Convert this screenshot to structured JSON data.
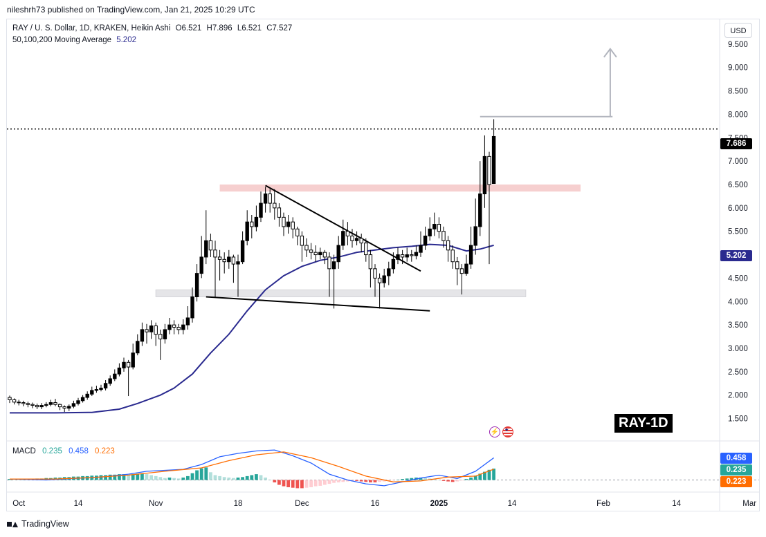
{
  "header": {
    "published": "nileshrh73 published on TradingView.com, Jan 21, 2025 10:29 UTC"
  },
  "legend": {
    "symbol": "RAY / U. S. Dollar, 1D, KRAKEN, Heikin Ashi",
    "open": "O6.521",
    "high": "H7.896",
    "low": "L6.521",
    "close": "C7.527",
    "ma_label": "50,100,200 Moving Average",
    "ma_value": "5.202"
  },
  "currency_button": "USD",
  "price_tags": {
    "last": "7.686",
    "ma": "5.202",
    "macd": "0.458",
    "hist": "0.235",
    "signal": "0.223"
  },
  "macd": {
    "label": "MACD",
    "hist": "0.235",
    "macd": "0.458",
    "signal": "0.223"
  },
  "chart_label": "RAY-1D",
  "footer": {
    "brand": "TradingView"
  },
  "colors": {
    "up": "#000000",
    "ma": "#2a2a8f",
    "macd": "#2962ff",
    "signal": "#ff6d00",
    "hist_up": "#26a69a",
    "hist_down": "#ef5350",
    "resistance": "#f4c7c7",
    "support": "#e5e5e8"
  },
  "icons": [
    "lightning-icon",
    "us-flag-icon",
    "tradingview-logo-icon"
  ],
  "chart_data": {
    "type": "candlestick",
    "y_ticks": [
      "9.500",
      "9.000",
      "8.500",
      "8.000",
      "7.500",
      "7.000",
      "6.500",
      "6.000",
      "5.500",
      "5.000",
      "4.500",
      "4.000",
      "3.500",
      "3.000",
      "2.500",
      "2.000",
      "1.500"
    ],
    "x_ticks": [
      "Oct",
      "14",
      "Nov",
      "18",
      "Dec",
      "16",
      "2025",
      "14",
      "Feb",
      "14",
      "Mar"
    ],
    "ylim": [
      1.05,
      10.0
    ],
    "candles": [
      [
        0,
        1.95,
        1.9,
        1.99,
        1.83
      ],
      [
        1,
        1.9,
        1.85,
        1.93,
        1.8
      ],
      [
        2,
        1.85,
        1.84,
        1.9,
        1.78
      ],
      [
        3,
        1.84,
        1.82,
        1.88,
        1.76
      ],
      [
        4,
        1.82,
        1.8,
        1.86,
        1.74
      ],
      [
        5,
        1.8,
        1.78,
        1.84,
        1.72
      ],
      [
        6,
        1.78,
        1.75,
        1.82,
        1.7
      ],
      [
        7,
        1.75,
        1.78,
        1.83,
        1.7
      ],
      [
        8,
        1.78,
        1.8,
        1.85,
        1.74
      ],
      [
        9,
        1.8,
        1.84,
        1.9,
        1.76
      ],
      [
        10,
        1.84,
        1.8,
        1.92,
        1.76
      ],
      [
        11,
        1.8,
        1.75,
        1.82,
        1.68
      ],
      [
        12,
        1.75,
        1.72,
        1.78,
        1.64
      ],
      [
        13,
        1.72,
        1.76,
        1.8,
        1.66
      ],
      [
        14,
        1.76,
        1.82,
        1.88,
        1.72
      ],
      [
        15,
        1.82,
        1.88,
        1.94,
        1.78
      ],
      [
        16,
        1.88,
        1.95,
        2.0,
        1.84
      ],
      [
        17,
        1.95,
        2.02,
        2.08,
        1.9
      ],
      [
        18,
        2.02,
        2.1,
        2.18,
        1.98
      ],
      [
        19,
        2.1,
        2.12,
        2.2,
        2.05
      ],
      [
        20,
        2.12,
        2.15,
        2.22,
        2.08
      ],
      [
        21,
        2.15,
        2.25,
        2.32,
        2.1
      ],
      [
        22,
        2.25,
        2.35,
        2.42,
        2.2
      ],
      [
        23,
        2.35,
        2.45,
        2.55,
        2.3
      ],
      [
        24,
        2.45,
        2.58,
        2.68,
        2.4
      ],
      [
        25,
        2.58,
        2.7,
        2.8,
        2.5
      ],
      [
        26,
        2.7,
        2.6,
        2.75,
        1.98
      ],
      [
        27,
        2.6,
        2.9,
        3.1,
        2.55
      ],
      [
        28,
        2.9,
        3.15,
        3.3,
        2.85
      ],
      [
        29,
        3.15,
        3.4,
        3.55,
        3.05
      ],
      [
        30,
        3.4,
        3.35,
        3.52,
        3.1
      ],
      [
        31,
        3.35,
        3.48,
        3.6,
        3.2
      ],
      [
        32,
        3.48,
        3.3,
        3.55,
        3.05
      ],
      [
        33,
        3.3,
        3.2,
        3.4,
        2.75
      ],
      [
        34,
        3.2,
        3.4,
        3.52,
        3.1
      ],
      [
        35,
        3.4,
        3.5,
        3.65,
        3.3
      ],
      [
        36,
        3.5,
        3.45,
        3.6,
        3.3
      ],
      [
        37,
        3.45,
        3.4,
        3.52,
        3.3
      ],
      [
        38,
        3.4,
        3.5,
        3.62,
        3.3
      ],
      [
        39,
        3.5,
        3.65,
        3.9,
        3.4
      ],
      [
        40,
        3.65,
        4.1,
        4.3,
        3.55
      ],
      [
        41,
        4.1,
        4.6,
        4.8,
        4.0
      ],
      [
        42,
        4.6,
        4.95,
        5.4,
        4.5
      ],
      [
        43,
        4.95,
        5.3,
        5.95,
        4.8
      ],
      [
        44,
        5.3,
        5.1,
        5.45,
        4.95
      ],
      [
        45,
        5.1,
        4.95,
        5.3,
        4.1
      ],
      [
        46,
        4.95,
        4.9,
        5.1,
        4.45
      ],
      [
        47,
        4.9,
        4.85,
        5.05,
        4.6
      ],
      [
        48,
        4.85,
        4.95,
        5.1,
        4.7
      ],
      [
        49,
        4.95,
        4.8,
        5.0,
        4.4
      ],
      [
        50,
        4.8,
        4.85,
        5.0,
        4.1
      ],
      [
        51,
        4.85,
        5.3,
        5.5,
        4.8
      ],
      [
        52,
        5.3,
        5.7,
        5.95,
        5.2
      ],
      [
        53,
        5.7,
        5.6,
        5.85,
        5.35
      ],
      [
        54,
        5.6,
        5.8,
        6.05,
        5.5
      ],
      [
        55,
        5.8,
        6.1,
        6.35,
        5.7
      ],
      [
        56,
        6.1,
        6.3,
        6.45,
        5.9
      ],
      [
        57,
        6.3,
        6.1,
        6.4,
        5.9
      ],
      [
        58,
        6.1,
        6.0,
        6.4,
        5.75
      ],
      [
        59,
        6.0,
        5.8,
        6.1,
        5.6
      ],
      [
        60,
        5.8,
        5.6,
        5.9,
        5.4
      ],
      [
        61,
        5.6,
        5.7,
        5.85,
        5.45
      ],
      [
        62,
        5.7,
        5.55,
        5.8,
        5.35
      ],
      [
        63,
        5.55,
        5.4,
        5.6,
        5.2
      ],
      [
        64,
        5.4,
        5.2,
        5.5,
        4.85
      ],
      [
        65,
        5.2,
        5.1,
        5.35,
        4.95
      ],
      [
        66,
        5.1,
        5.05,
        5.25,
        4.9
      ],
      [
        67,
        5.05,
        5.0,
        5.2,
        4.85
      ],
      [
        68,
        5.0,
        5.05,
        5.15,
        4.9
      ],
      [
        69,
        5.05,
        4.95,
        5.1,
        4.8
      ],
      [
        70,
        4.95,
        4.7,
        5.05,
        4.1
      ],
      [
        71,
        4.7,
        4.85,
        5.0,
        3.85
      ],
      [
        72,
        4.85,
        5.2,
        5.4,
        4.7
      ],
      [
        73,
        5.2,
        5.5,
        5.75,
        5.1
      ],
      [
        74,
        5.5,
        5.4,
        5.7,
        5.2
      ],
      [
        75,
        5.4,
        5.3,
        5.55,
        5.15
      ],
      [
        76,
        5.3,
        5.35,
        5.5,
        5.2
      ],
      [
        77,
        5.35,
        5.25,
        5.45,
        5.05
      ],
      [
        78,
        5.25,
        5.0,
        5.35,
        4.85
      ],
      [
        79,
        5.0,
        4.7,
        5.1,
        4.3
      ],
      [
        80,
        4.7,
        4.5,
        4.8,
        4.1
      ],
      [
        81,
        4.5,
        4.4,
        4.6,
        3.85
      ],
      [
        82,
        4.4,
        4.55,
        4.7,
        4.3
      ],
      [
        83,
        4.55,
        4.7,
        4.85,
        4.35
      ],
      [
        84,
        4.7,
        4.9,
        5.05,
        4.6
      ],
      [
        85,
        4.9,
        5.0,
        5.15,
        4.8
      ],
      [
        86,
        5.0,
        4.95,
        5.1,
        4.8
      ],
      [
        87,
        4.95,
        5.0,
        5.15,
        4.85
      ],
      [
        88,
        5.0,
        4.98,
        5.1,
        4.85
      ],
      [
        89,
        4.98,
        5.05,
        5.2,
        4.9
      ],
      [
        90,
        5.05,
        5.2,
        5.5,
        4.95
      ],
      [
        91,
        5.2,
        5.4,
        5.6,
        5.1
      ],
      [
        92,
        5.4,
        5.55,
        5.8,
        5.3
      ],
      [
        93,
        5.55,
        5.65,
        5.9,
        5.4
      ],
      [
        94,
        5.65,
        5.5,
        5.8,
        5.35
      ],
      [
        95,
        5.5,
        5.3,
        5.6,
        5.15
      ],
      [
        96,
        5.3,
        5.1,
        5.4,
        4.85
      ],
      [
        97,
        5.1,
        4.85,
        5.2,
        4.7
      ],
      [
        98,
        4.85,
        4.7,
        4.95,
        4.35
      ],
      [
        99,
        4.7,
        4.6,
        4.8,
        4.15
      ],
      [
        100,
        4.6,
        4.8,
        5.0,
        4.55
      ],
      [
        101,
        4.8,
        5.2,
        5.6,
        4.7
      ],
      [
        102,
        5.2,
        5.6,
        6.2,
        5.0
      ],
      [
        103,
        5.6,
        6.3,
        7.0,
        5.4
      ],
      [
        104,
        6.3,
        7.1,
        7.55,
        6.0
      ],
      [
        105,
        7.1,
        6.5,
        7.2,
        4.8
      ],
      [
        106,
        6.521,
        7.527,
        7.896,
        6.521
      ]
    ],
    "moving_average": [
      [
        0,
        1.62
      ],
      [
        10,
        1.62
      ],
      [
        18,
        1.63
      ],
      [
        24,
        1.7
      ],
      [
        28,
        1.82
      ],
      [
        33,
        2.0
      ],
      [
        36,
        2.15
      ],
      [
        40,
        2.45
      ],
      [
        44,
        2.9
      ],
      [
        48,
        3.3
      ],
      [
        52,
        3.8
      ],
      [
        56,
        4.25
      ],
      [
        60,
        4.55
      ],
      [
        64,
        4.75
      ],
      [
        68,
        4.88
      ],
      [
        72,
        4.95
      ],
      [
        76,
        5.05
      ],
      [
        80,
        5.1
      ],
      [
        84,
        5.15
      ],
      [
        88,
        5.18
      ],
      [
        92,
        5.22
      ],
      [
        96,
        5.2
      ],
      [
        100,
        5.08
      ],
      [
        103,
        5.12
      ],
      [
        106,
        5.202
      ]
    ],
    "resistance_zone": [
      6.35,
      6.5
    ],
    "support_zone": [
      4.1,
      4.25
    ],
    "trendline_upper": [
      [
        56,
        6.48
      ],
      [
        90,
        4.65
      ]
    ],
    "trendline_lower": [
      [
        43,
        4.1
      ],
      [
        92,
        3.8
      ]
    ],
    "target_line": 7.95,
    "target_arrow_to": 9.4,
    "macd_series": {
      "macd": [
        [
          0,
          0.02
        ],
        [
          8,
          0.0
        ],
        [
          14,
          0.03
        ],
        [
          20,
          0.06
        ],
        [
          26,
          0.12
        ],
        [
          30,
          0.18
        ],
        [
          34,
          0.2
        ],
        [
          38,
          0.22
        ],
        [
          42,
          0.32
        ],
        [
          46,
          0.48
        ],
        [
          50,
          0.55
        ],
        [
          54,
          0.6
        ],
        [
          58,
          0.62
        ],
        [
          62,
          0.5
        ],
        [
          66,
          0.35
        ],
        [
          70,
          0.12
        ],
        [
          74,
          0.0
        ],
        [
          78,
          -0.08
        ],
        [
          82,
          -0.12
        ],
        [
          86,
          -0.04
        ],
        [
          90,
          0.04
        ],
        [
          94,
          0.1
        ],
        [
          98,
          0.03
        ],
        [
          102,
          0.18
        ],
        [
          106,
          0.458
        ]
      ],
      "signal": [
        [
          0,
          0.02
        ],
        [
          10,
          0.02
        ],
        [
          18,
          0.05
        ],
        [
          26,
          0.1
        ],
        [
          34,
          0.18
        ],
        [
          42,
          0.25
        ],
        [
          48,
          0.4
        ],
        [
          54,
          0.52
        ],
        [
          60,
          0.58
        ],
        [
          66,
          0.46
        ],
        [
          72,
          0.28
        ],
        [
          78,
          0.08
        ],
        [
          84,
          -0.04
        ],
        [
          90,
          -0.02
        ],
        [
          96,
          0.06
        ],
        [
          102,
          0.08
        ],
        [
          106,
          0.223
        ]
      ],
      "hist": [
        0.02,
        0.01,
        0.0,
        0.01,
        0.02,
        0.02,
        0.03,
        0.03,
        0.04,
        0.04,
        0.05,
        0.05,
        0.06,
        0.06,
        0.07,
        0.07,
        0.08,
        0.08,
        0.09,
        0.09,
        0.1,
        0.1,
        0.11,
        0.11,
        0.12,
        0.12,
        0.1,
        0.12,
        0.13,
        0.14,
        0.12,
        0.1,
        0.08,
        0.06,
        0.04,
        0.05,
        0.04,
        0.03,
        0.05,
        0.08,
        0.14,
        0.2,
        0.24,
        0.26,
        0.16,
        0.1,
        0.08,
        0.06,
        0.05,
        0.04,
        0.05,
        0.06,
        0.08,
        0.1,
        0.12,
        0.1,
        0.05,
        0.0,
        -0.05,
        -0.1,
        -0.13,
        -0.15,
        -0.16,
        -0.17,
        -0.17,
        -0.16,
        -0.15,
        -0.13,
        -0.12,
        -0.1,
        -0.08,
        -0.06,
        -0.05,
        -0.04,
        -0.03,
        -0.02,
        -0.02,
        -0.03,
        -0.04,
        -0.05,
        -0.05,
        -0.04,
        -0.03,
        -0.02,
        -0.01,
        0.0,
        0.02,
        0.03,
        0.04,
        0.05,
        0.05,
        0.04,
        0.03,
        0.02,
        0.0,
        -0.02,
        -0.03,
        -0.04,
        -0.03,
        -0.01,
        0.02,
        0.05,
        0.09,
        0.13,
        0.17,
        0.21,
        0.235
      ],
      "ylim": [
        -0.25,
        0.75
      ],
      "zero_line": 0
    }
  }
}
